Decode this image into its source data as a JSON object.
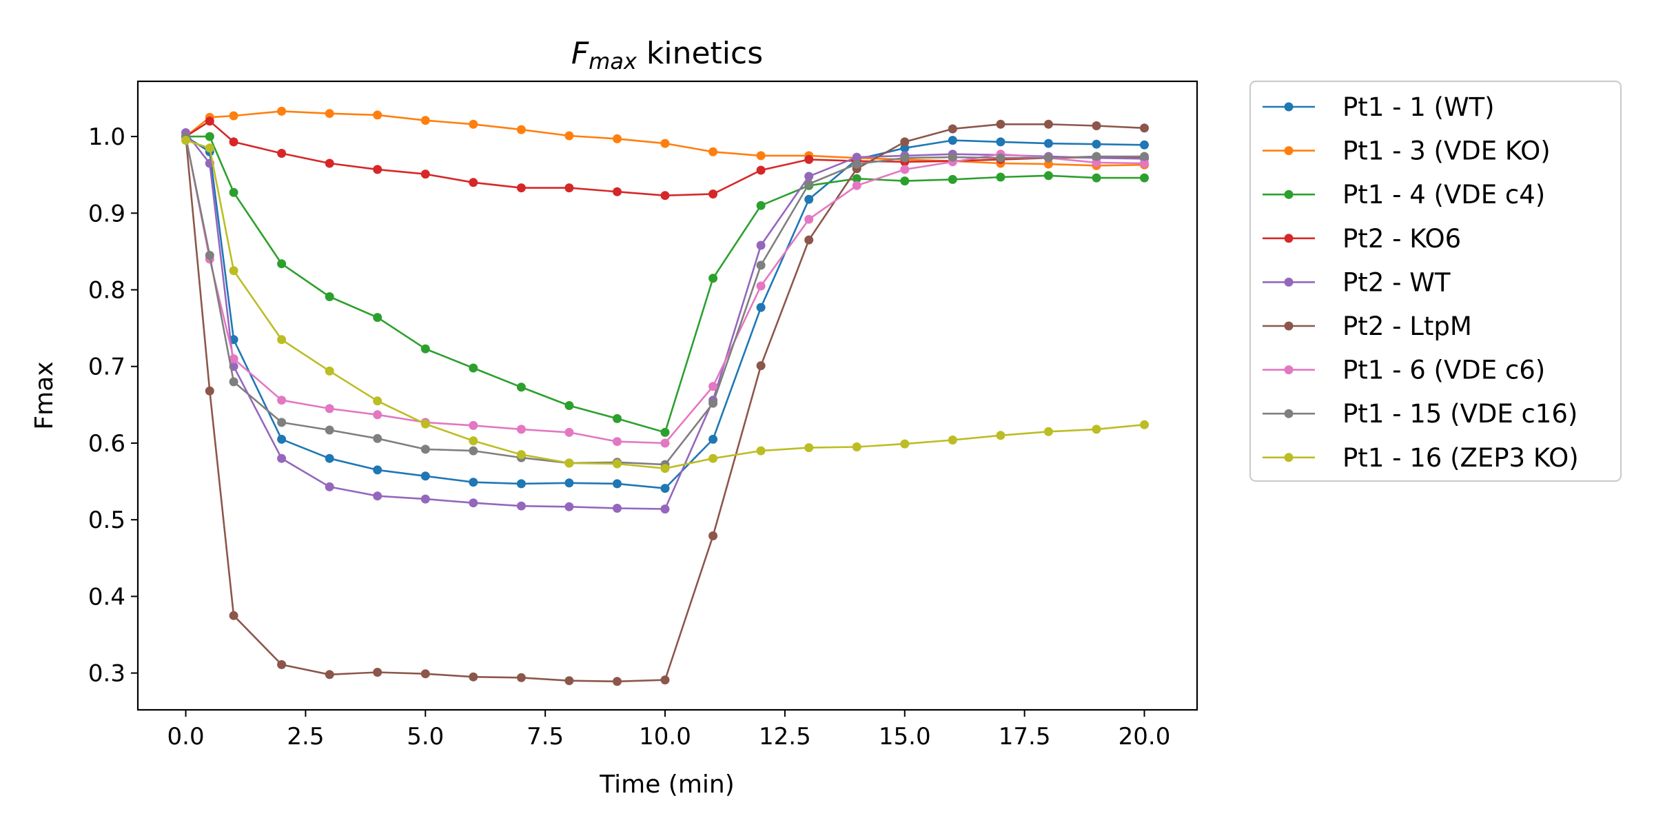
{
  "chart_data": {
    "type": "line",
    "title": {
      "main": "F",
      "sub": "max",
      "rest": " kinetics"
    },
    "xlabel": "Time (min)",
    "ylabel": "Fmax",
    "xlim": [
      -1.0,
      21.1
    ],
    "ylim": [
      0.252,
      1.072
    ],
    "xticks": [
      0.0,
      2.5,
      5.0,
      7.5,
      10.0,
      12.5,
      15.0,
      17.5,
      20.0
    ],
    "xtick_labels": [
      "0.0",
      "2.5",
      "5.0",
      "7.5",
      "10.0",
      "12.5",
      "15.0",
      "17.5",
      "20.0"
    ],
    "yticks": [
      0.3,
      0.4,
      0.5,
      0.6,
      0.7,
      0.8,
      0.9,
      1.0
    ],
    "ytick_labels": [
      "0.3",
      "0.4",
      "0.5",
      "0.6",
      "0.7",
      "0.8",
      "0.9",
      "1.0"
    ],
    "grid": false,
    "legend_position": "outside-right-top",
    "x": [
      0,
      0.5,
      1,
      2,
      3,
      4,
      5,
      6,
      7,
      8,
      9,
      10,
      11,
      12,
      13,
      14,
      15,
      16,
      17,
      18,
      19,
      20
    ],
    "series": [
      {
        "name": "Pt1 - 1 (WT)",
        "color": "#1f77b4",
        "values": [
          1.0,
          0.98,
          0.735,
          0.605,
          0.58,
          0.565,
          0.557,
          0.549,
          0.547,
          0.548,
          0.547,
          0.541,
          0.605,
          0.777,
          0.918,
          0.97,
          0.985,
          0.995,
          0.993,
          0.991,
          0.99,
          0.989
        ]
      },
      {
        "name": "Pt1 - 3 (VDE KO)",
        "color": "#ff7f0e",
        "values": [
          1.0,
          1.025,
          1.027,
          1.033,
          1.03,
          1.028,
          1.021,
          1.016,
          1.009,
          1.001,
          0.997,
          0.991,
          0.98,
          0.975,
          0.975,
          0.972,
          0.97,
          0.968,
          0.965,
          0.964,
          0.962,
          0.963
        ]
      },
      {
        "name": "Pt1 - 4 (VDE c4)",
        "color": "#2ca02c",
        "values": [
          1.0,
          1.0,
          0.927,
          0.834,
          0.791,
          0.764,
          0.723,
          0.698,
          0.673,
          0.649,
          0.632,
          0.614,
          0.815,
          0.91,
          0.936,
          0.945,
          0.942,
          0.944,
          0.947,
          0.949,
          0.946,
          0.946
        ]
      },
      {
        "name": "Pt2 - KO6",
        "color": "#d62728",
        "values": [
          1.0,
          1.02,
          0.993,
          0.978,
          0.965,
          0.957,
          0.951,
          0.94,
          0.933,
          0.933,
          0.928,
          0.923,
          0.925,
          0.956,
          0.97,
          0.968,
          0.967,
          0.968,
          0.97,
          0.972,
          0.973,
          0.972
        ]
      },
      {
        "name": "Pt2 - WT",
        "color": "#9467bd",
        "values": [
          1.005,
          0.965,
          0.7,
          0.58,
          0.543,
          0.531,
          0.527,
          0.522,
          0.518,
          0.517,
          0.515,
          0.514,
          0.656,
          0.858,
          0.948,
          0.973,
          0.975,
          0.977,
          0.976,
          0.974,
          0.972,
          0.971
        ]
      },
      {
        "name": "Pt2 - LtpM",
        "color": "#8c564b",
        "values": [
          1.0,
          0.668,
          0.375,
          0.311,
          0.298,
          0.301,
          0.299,
          0.295,
          0.294,
          0.29,
          0.289,
          0.291,
          0.479,
          0.701,
          0.865,
          0.958,
          0.993,
          1.01,
          1.016,
          1.016,
          1.014,
          1.011
        ]
      },
      {
        "name": "Pt1 - 6 (VDE c6)",
        "color": "#e377c2",
        "values": [
          1.0,
          0.84,
          0.71,
          0.656,
          0.645,
          0.637,
          0.627,
          0.623,
          0.618,
          0.614,
          0.602,
          0.6,
          0.674,
          0.805,
          0.892,
          0.936,
          0.957,
          0.967,
          0.977,
          0.972,
          0.966,
          0.965
        ]
      },
      {
        "name": "Pt1 - 15 (VDE c16)",
        "color": "#7f7f7f",
        "values": [
          1.0,
          0.845,
          0.68,
          0.627,
          0.617,
          0.606,
          0.592,
          0.59,
          0.581,
          0.574,
          0.575,
          0.572,
          0.652,
          0.832,
          0.938,
          0.964,
          0.972,
          0.973,
          0.972,
          0.972,
          0.974,
          0.974
        ]
      },
      {
        "name": "Pt1 - 16 (ZEP3 KO)",
        "color": "#bcbd22",
        "values": [
          0.995,
          0.985,
          0.825,
          0.735,
          0.694,
          0.655,
          0.625,
          0.603,
          0.585,
          0.574,
          0.573,
          0.567,
          0.58,
          0.59,
          0.594,
          0.595,
          0.599,
          0.604,
          0.61,
          0.615,
          0.618,
          0.624
        ]
      }
    ]
  }
}
